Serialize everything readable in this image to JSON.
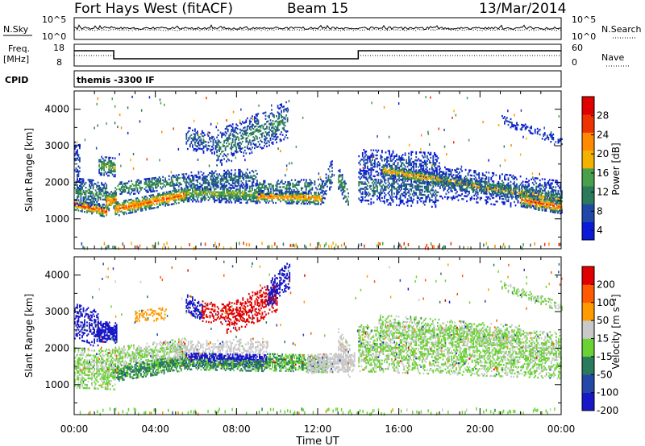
{
  "header": {
    "station": "Fort Hays West (fitACF)",
    "beam": "Beam 15",
    "date": "13/Mar/2014"
  },
  "noise_panel": {
    "left_label": "N.Sky",
    "left_ticks": [
      "10^5",
      "10^0"
    ],
    "right_label": "N.Search",
    "right_ticks": [
      "10^5",
      "10^0"
    ]
  },
  "freq_panel": {
    "left_label_line1": "Freq.",
    "left_label_line2": "[MHz]",
    "left_ticks": [
      "18",
      "8"
    ],
    "right_label": "Nave",
    "right_ticks": [
      "60",
      "0"
    ]
  },
  "cpid_panel": {
    "label": "CPID",
    "text": "themis -3300 IF"
  },
  "colors": {
    "power_scale": [
      "#0a1ad8",
      "#1f48a8",
      "#2a7a5c",
      "#49a04a",
      "#f3b200",
      "#ff8a00",
      "#ee3300",
      "#e00000"
    ],
    "velocity_scale": [
      "#1818c8",
      "#2548a8",
      "#2a7a5c",
      "#6bd235",
      "#c9c9c9",
      "#ff9a00",
      "#ff5a00",
      "#e00000"
    ]
  },
  "chart_data": [
    {
      "type": "heatmap",
      "panel": "power",
      "xlabel": "Time UT",
      "ylabel": "Slant Range [km]",
      "x_ticks": [
        "00:00",
        "04:00",
        "08:00",
        "12:00",
        "16:00",
        "20:00",
        "00:00"
      ],
      "y_ticks": [
        "1000",
        "2000",
        "3000",
        "4000"
      ],
      "xlim_hours": [
        0,
        24
      ],
      "ylim_km": [
        180,
        4500
      ],
      "colorbar": {
        "label": "Power [dB]",
        "ticks": [
          "28",
          "24",
          "20",
          "16",
          "12",
          "8",
          "4"
        ],
        "range": [
          0,
          30
        ]
      },
      "echo_bands": [
        {
          "t0": 0.0,
          "t1": 1.6,
          "r0": 1380,
          "r1": 1180,
          "w": 150,
          "v": 25,
          "d": 0.95
        },
        {
          "t0": 0.0,
          "t1": 1.6,
          "r0": 1750,
          "r1": 1650,
          "w": 380,
          "v": 11,
          "d": 0.6
        },
        {
          "t0": 0.0,
          "t1": 0.3,
          "r0": 2600,
          "r1": 2400,
          "w": 650,
          "v": 6,
          "d": 0.55
        },
        {
          "t0": 1.5,
          "t1": 2.1,
          "r0": 1450,
          "r1": 1500,
          "w": 250,
          "v": 22,
          "d": 0.9
        },
        {
          "t0": 1.2,
          "t1": 2.0,
          "r0": 2450,
          "r1": 2400,
          "w": 260,
          "v": 14,
          "d": 0.85
        },
        {
          "t0": 2.0,
          "t1": 5.5,
          "r0": 1250,
          "r1": 1650,
          "w": 190,
          "v": 23,
          "d": 0.95
        },
        {
          "t0": 2.0,
          "t1": 5.5,
          "r0": 1800,
          "r1": 2050,
          "w": 200,
          "v": 12,
          "d": 0.65
        },
        {
          "t0": 5.5,
          "t1": 9.0,
          "r0": 1700,
          "r1": 1650,
          "w": 240,
          "v": 15,
          "d": 0.85
        },
        {
          "t0": 5.5,
          "t1": 9.0,
          "r0": 2000,
          "r1": 2100,
          "w": 250,
          "v": 9,
          "d": 0.6
        },
        {
          "t0": 9.0,
          "t1": 12.2,
          "r0": 1600,
          "r1": 1550,
          "w": 170,
          "v": 21,
          "d": 0.95
        },
        {
          "t0": 9.0,
          "t1": 12.2,
          "r0": 1850,
          "r1": 1900,
          "w": 200,
          "v": 11,
          "d": 0.55
        },
        {
          "t0": 12.2,
          "t1": 12.7,
          "r0": 1700,
          "r1": 2300,
          "w": 350,
          "v": 9,
          "d": 0.55
        },
        {
          "t0": 13.0,
          "t1": 13.5,
          "r0": 2100,
          "r1": 1550,
          "w": 300,
          "v": 13,
          "d": 0.6
        },
        {
          "t0": 14.0,
          "t1": 18.0,
          "r0": 1900,
          "r1": 1800,
          "w": 500,
          "v": 8,
          "d": 0.55
        },
        {
          "t0": 14.0,
          "t1": 18.0,
          "r0": 2550,
          "r1": 2450,
          "w": 350,
          "v": 6,
          "d": 0.5
        },
        {
          "t0": 15.2,
          "t1": 24.0,
          "r0": 2300,
          "r1": 1500,
          "w": 170,
          "v": 19,
          "d": 0.85
        },
        {
          "t0": 18.0,
          "t1": 24.0,
          "r0": 2000,
          "r1": 1600,
          "w": 450,
          "v": 8,
          "d": 0.5
        },
        {
          "t0": 22.0,
          "t1": 24.0,
          "r0": 1500,
          "r1": 1300,
          "w": 180,
          "v": 24,
          "d": 0.85
        },
        {
          "t0": 5.5,
          "t1": 7.0,
          "r0": 3200,
          "r1": 3000,
          "w": 300,
          "v": 8,
          "d": 0.45
        },
        {
          "t0": 7.0,
          "t1": 10.5,
          "r0": 2900,
          "r1": 3700,
          "w": 500,
          "v": 10,
          "d": 0.45
        },
        {
          "t0": 21.0,
          "t1": 24.0,
          "r0": 3700,
          "r1": 3100,
          "w": 120,
          "v": 5,
          "d": 0.45
        }
      ]
    },
    {
      "type": "heatmap",
      "panel": "velocity",
      "xlabel": "Time UT",
      "ylabel": "Slant Range [km]",
      "x_ticks": [
        "00:00",
        "04:00",
        "08:00",
        "12:00",
        "16:00",
        "20:00",
        "00:00"
      ],
      "y_ticks": [
        "1000",
        "2000",
        "3000",
        "4000"
      ],
      "xlim_hours": [
        0,
        24
      ],
      "ylim_km": [
        180,
        4500
      ],
      "colorbar": {
        "label": "Velocity [m s⁻¹]",
        "ticks": [
          "200",
          "100",
          "50",
          "15",
          "-15",
          "-50",
          "-100",
          "-200"
        ],
        "range": [
          -250,
          250
        ]
      },
      "echo_bands": [
        {
          "t0": 0.0,
          "t1": 2.0,
          "r0": 1450,
          "r1": 1400,
          "w": 550,
          "v": -5,
          "d": 0.7
        },
        {
          "t0": 0.0,
          "t1": 1.2,
          "r0": 2700,
          "r1": 2500,
          "w": 500,
          "v": -230,
          "d": 0.5
        },
        {
          "t0": 1.1,
          "t1": 2.1,
          "r0": 2450,
          "r1": 2400,
          "w": 280,
          "v": -230,
          "d": 0.95
        },
        {
          "t0": 2.0,
          "t1": 5.5,
          "r0": 1300,
          "r1": 1600,
          "w": 220,
          "v": -70,
          "d": 0.9
        },
        {
          "t0": 2.0,
          "t1": 5.5,
          "r0": 1750,
          "r1": 2000,
          "w": 250,
          "v": 0,
          "d": 0.7
        },
        {
          "t0": 5.0,
          "t1": 9.5,
          "r0": 1900,
          "r1": 2000,
          "w": 250,
          "v": 30,
          "d": 0.5
        },
        {
          "t0": 5.5,
          "t1": 9.5,
          "r0": 1700,
          "r1": 1650,
          "w": 180,
          "v": -230,
          "d": 0.85
        },
        {
          "t0": 5.5,
          "t1": 9.5,
          "r0": 1550,
          "r1": 1500,
          "w": 150,
          "v": -70,
          "d": 0.8
        },
        {
          "t0": 9.5,
          "t1": 12.5,
          "r0": 1600,
          "r1": 1550,
          "w": 230,
          "v": -60,
          "d": 0.85
        },
        {
          "t0": 11.5,
          "t1": 13.8,
          "r0": 1550,
          "r1": 1600,
          "w": 250,
          "v": 35,
          "d": 0.9
        },
        {
          "t0": 13.0,
          "t1": 13.6,
          "r0": 2100,
          "r1": 1600,
          "w": 450,
          "v": 40,
          "d": 0.7
        },
        {
          "t0": 14.0,
          "t1": 24.0,
          "r0": 2000,
          "r1": 1800,
          "w": 650,
          "v": -5,
          "d": 0.6
        },
        {
          "t0": 15.0,
          "t1": 22.0,
          "r0": 2600,
          "r1": 2300,
          "w": 300,
          "v": -5,
          "d": 0.5
        },
        {
          "t0": 5.5,
          "t1": 6.3,
          "r0": 3200,
          "r1": 3000,
          "w": 250,
          "v": -230,
          "d": 0.65
        },
        {
          "t0": 6.3,
          "t1": 7.5,
          "r0": 3000,
          "r1": 2900,
          "w": 280,
          "v": 230,
          "d": 0.5
        },
        {
          "t0": 7.5,
          "t1": 10.0,
          "r0": 2800,
          "r1": 3400,
          "w": 450,
          "v": 220,
          "d": 0.5
        },
        {
          "t0": 9.5,
          "t1": 10.6,
          "r0": 3400,
          "r1": 4000,
          "w": 400,
          "v": -230,
          "d": 0.55
        },
        {
          "t0": 3.0,
          "t1": 4.5,
          "r0": 2850,
          "r1": 2950,
          "w": 180,
          "v": 100,
          "d": 0.4
        },
        {
          "t0": 21.0,
          "t1": 24.0,
          "r0": 3700,
          "r1": 3100,
          "w": 120,
          "v": -5,
          "d": 0.4
        }
      ]
    }
  ]
}
